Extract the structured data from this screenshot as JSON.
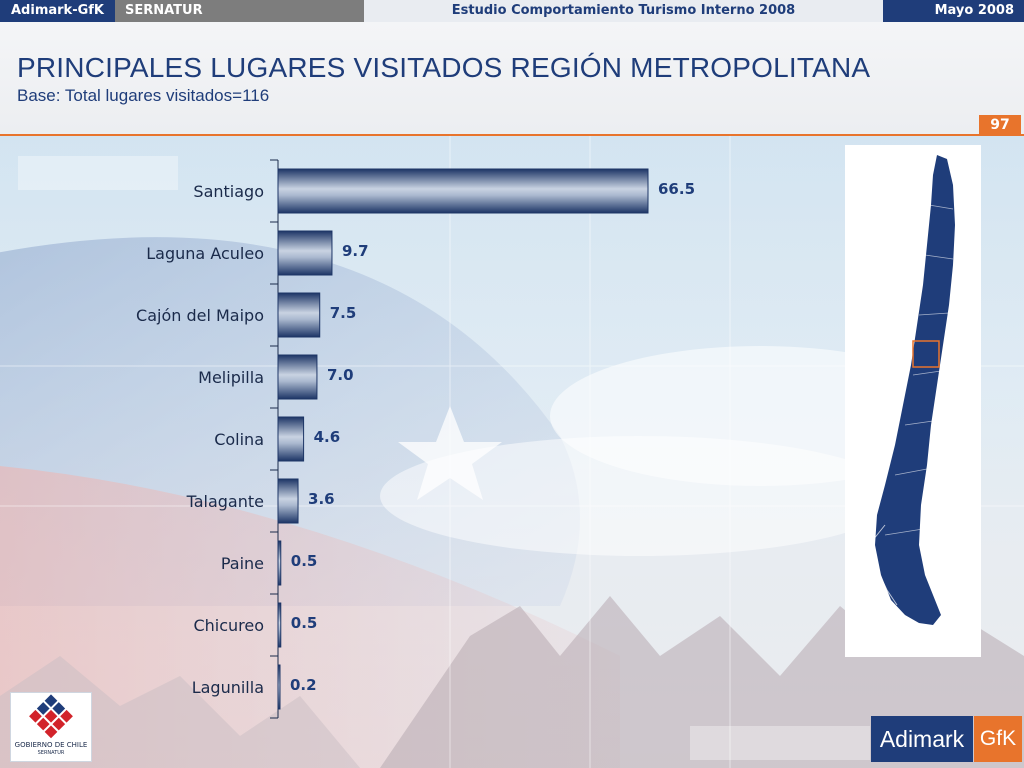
{
  "topbar": {
    "brand": "Adimark-GfK",
    "client": "SERNATUR",
    "study": "Estudio Comportamiento Turismo Interno 2008",
    "date": "Mayo 2008"
  },
  "slide": {
    "page_number": "97"
  },
  "colors": {
    "navy": "#1f3d7a",
    "orange": "#e8742c",
    "bar_dark": "#1d3566",
    "bar_light": "#c9d3e2"
  },
  "chart_data": {
    "type": "bar",
    "orientation": "horizontal",
    "title": "PRINCIPALES LUGARES VISITADOS REGIÓN METROPOLITANA",
    "subtitle": "Base: Total lugares visitados=116",
    "categories": [
      "Santiago",
      "Laguna Aculeo",
      "Cajón del Maipo",
      "Melipilla",
      "Colina",
      "Talagante",
      "Paine",
      "Chicureo",
      "Lagunilla"
    ],
    "values": [
      66.5,
      9.7,
      7.5,
      7.0,
      4.6,
      3.6,
      0.5,
      0.5,
      0.2
    ],
    "value_labels": [
      "66.5",
      "9.7",
      "7.5",
      "7.0",
      "4.6",
      "3.6",
      "0.5",
      "0.5",
      "0.2"
    ],
    "xlim": [
      0,
      66.5
    ],
    "grid": false,
    "legend": "none"
  },
  "logos": {
    "gobierno_line1": "GOBIERNO DE CHILE",
    "gobierno_line2": "SERNATUR",
    "adimark": "Adimark",
    "gfk": "GfK"
  },
  "map": {
    "icon": "chile-map-icon",
    "highlight": "region-metropolitana"
  }
}
